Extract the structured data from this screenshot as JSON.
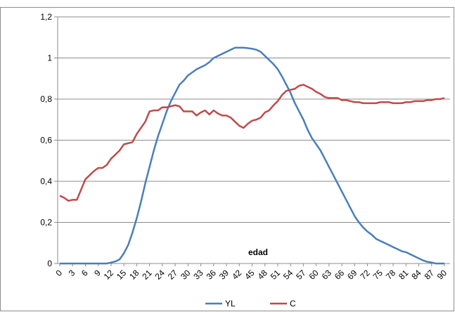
{
  "chart_data": {
    "type": "line",
    "x_label": "edad",
    "x": [
      0,
      1,
      2,
      3,
      4,
      5,
      6,
      7,
      8,
      9,
      10,
      11,
      12,
      13,
      14,
      15,
      16,
      17,
      18,
      19,
      20,
      21,
      22,
      23,
      24,
      25,
      26,
      27,
      28,
      29,
      30,
      31,
      32,
      33,
      34,
      35,
      36,
      37,
      38,
      39,
      40,
      41,
      42,
      43,
      44,
      45,
      46,
      47,
      48,
      49,
      50,
      51,
      52,
      53,
      54,
      55,
      56,
      57,
      58,
      59,
      60,
      61,
      62,
      63,
      64,
      65,
      66,
      67,
      68,
      69,
      70,
      71,
      72,
      73,
      74,
      75,
      76,
      77,
      78,
      79,
      80,
      81,
      82,
      83,
      84,
      85,
      86,
      87,
      88,
      89,
      90
    ],
    "xlim": [
      0,
      90
    ],
    "xticks": [
      0,
      3,
      6,
      9,
      12,
      15,
      18,
      21,
      24,
      27,
      30,
      33,
      36,
      39,
      42,
      45,
      48,
      51,
      54,
      57,
      60,
      63,
      66,
      69,
      72,
      75,
      78,
      81,
      84,
      87,
      90
    ],
    "ylim": [
      0,
      1.2
    ],
    "yticks": [
      0,
      {
        "value": 0.2,
        "label": "0,2"
      },
      {
        "value": 0.4,
        "label": "0,4"
      },
      {
        "value": 0.6,
        "label": "0,6"
      },
      {
        "value": 0.8,
        "label": "0,8"
      },
      1,
      {
        "value": 1.2,
        "label": "1,2"
      }
    ],
    "grid": true,
    "legend": "bottom",
    "series": [
      {
        "name": "YL",
        "color": "#4a7ebb",
        "values": [
          0,
          0,
          0,
          0,
          0,
          0,
          0,
          0,
          0,
          0,
          0,
          0,
          0.005,
          0.01,
          0.02,
          0.05,
          0.09,
          0.15,
          0.22,
          0.3,
          0.39,
          0.47,
          0.55,
          0.62,
          0.68,
          0.74,
          0.79,
          0.83,
          0.87,
          0.89,
          0.915,
          0.93,
          0.945,
          0.955,
          0.965,
          0.98,
          1.0,
          1.01,
          1.02,
          1.03,
          1.04,
          1.05,
          1.05,
          1.05,
          1.048,
          1.045,
          1.04,
          1.03,
          1.01,
          0.99,
          0.97,
          0.945,
          0.91,
          0.87,
          0.83,
          0.78,
          0.74,
          0.7,
          0.65,
          0.61,
          0.58,
          0.55,
          0.51,
          0.47,
          0.43,
          0.39,
          0.35,
          0.31,
          0.27,
          0.23,
          0.2,
          0.175,
          0.155,
          0.14,
          0.12,
          0.11,
          0.1,
          0.09,
          0.08,
          0.07,
          0.06,
          0.055,
          0.045,
          0.035,
          0.025,
          0.015,
          0.008,
          0.005,
          0,
          0,
          0
        ]
      },
      {
        "name": "C",
        "color": "#be4b48",
        "values": [
          0.33,
          0.32,
          0.305,
          0.31,
          0.31,
          0.36,
          0.41,
          0.43,
          0.45,
          0.465,
          0.465,
          0.48,
          0.51,
          0.53,
          0.55,
          0.58,
          0.585,
          0.59,
          0.63,
          0.66,
          0.69,
          0.74,
          0.745,
          0.745,
          0.76,
          0.76,
          0.765,
          0.77,
          0.765,
          0.74,
          0.74,
          0.74,
          0.72,
          0.735,
          0.745,
          0.725,
          0.745,
          0.73,
          0.72,
          0.72,
          0.71,
          0.69,
          0.67,
          0.66,
          0.68,
          0.695,
          0.7,
          0.71,
          0.735,
          0.745,
          0.77,
          0.79,
          0.82,
          0.84,
          0.845,
          0.85,
          0.865,
          0.87,
          0.86,
          0.85,
          0.835,
          0.825,
          0.81,
          0.805,
          0.805,
          0.805,
          0.795,
          0.795,
          0.79,
          0.785,
          0.785,
          0.78,
          0.78,
          0.78,
          0.78,
          0.785,
          0.785,
          0.785,
          0.78,
          0.78,
          0.78,
          0.785,
          0.785,
          0.79,
          0.79,
          0.79,
          0.795,
          0.795,
          0.8,
          0.8,
          0.805
        ]
      }
    ]
  }
}
